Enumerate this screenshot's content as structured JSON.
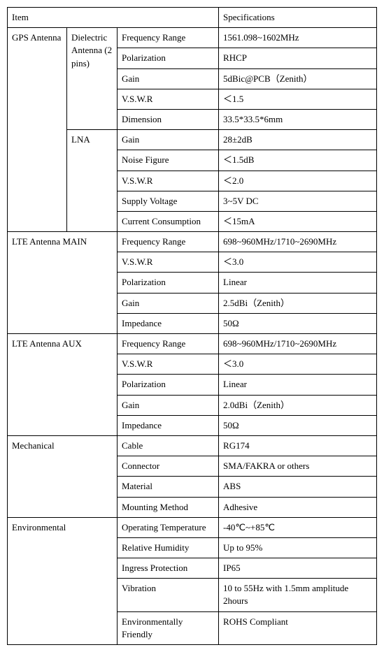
{
  "header": {
    "item": "Item",
    "spec": "Specifications"
  },
  "gps": {
    "label": "GPS Antenna",
    "dielectric": {
      "label": "Dielectric Antenna (2 pins)",
      "rows": [
        {
          "param": "Frequency Range",
          "val": "1561.098~1602MHz"
        },
        {
          "param": "Polarization",
          "val": "RHCP"
        },
        {
          "param": "Gain",
          "val": "5dBic@PCB（Zenith）"
        },
        {
          "param": "V.S.W.R",
          "val": "＜1.5"
        },
        {
          "param": "Dimension",
          "val": "33.5*33.5*6mm"
        }
      ]
    },
    "lna": {
      "label": "LNA",
      "rows": [
        {
          "param": "Gain",
          "val": "28±2dB"
        },
        {
          "param": "Noise Figure",
          "val": "＜1.5dB"
        },
        {
          "param": "V.S.W.R",
          "val": "＜2.0"
        },
        {
          "param": "Supply Voltage",
          "val": "3~5V DC"
        },
        {
          "param": "Current Consumption",
          "val": "＜15mA"
        }
      ]
    }
  },
  "lte_main": {
    "label": "LTE Antenna MAIN",
    "rows": [
      {
        "param": "Frequency Range",
        "val": "698~960MHz/1710~2690MHz"
      },
      {
        "param": "V.S.W.R",
        "val": "＜3.0"
      },
      {
        "param": "Polarization",
        "val": "Linear"
      },
      {
        "param": "Gain",
        "val": "2.5dBi（Zenith）"
      },
      {
        "param": "Impedance",
        "val": "50Ω"
      }
    ]
  },
  "lte_aux": {
    "label": "LTE Antenna AUX",
    "rows": [
      {
        "param": "Frequency Range",
        "val": "698~960MHz/1710~2690MHz"
      },
      {
        "param": "V.S.W.R",
        "val": "＜3.0"
      },
      {
        "param": "Polarization",
        "val": "Linear"
      },
      {
        "param": "Gain",
        "val": "2.0dBi（Zenith）"
      },
      {
        "param": "Impedance",
        "val": "50Ω"
      }
    ]
  },
  "mechanical": {
    "label": "Mechanical",
    "rows": [
      {
        "param": "Cable",
        "val": "RG174"
      },
      {
        "param": "Connector",
        "val": "SMA/FAKRA or others"
      },
      {
        "param": "Material",
        "val": "ABS"
      },
      {
        "param": "Mounting Method",
        "val": "Adhesive"
      }
    ]
  },
  "environmental": {
    "label": "Environmental",
    "rows": [
      {
        "param": "Operating Temperature",
        "val": "-40℃~+85℃"
      },
      {
        "param": "Relative Humidity",
        "val": "Up to 95%"
      },
      {
        "param": "Ingress Protection",
        "val": "IP65"
      },
      {
        "param": "Vibration",
        "val": "10 to 55Hz with 1.5mm amplitude 2hours"
      },
      {
        "param": "Environmentally Friendly",
        "val": "ROHS Compliant"
      }
    ]
  }
}
